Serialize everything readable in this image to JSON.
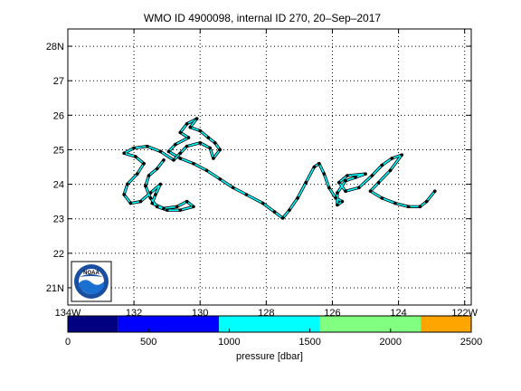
{
  "title": "WMO ID 4900098, internal ID 270, 20–Sep–2017",
  "logo_text": "NOAA",
  "colorbar": {
    "label": "pressure [dbar]",
    "ticks": [
      "0",
      "500",
      "1000",
      "1500",
      "2000",
      "2500"
    ],
    "tick_values": [
      0,
      500,
      1000,
      1500,
      2000,
      2500
    ],
    "range": [
      0,
      2500
    ],
    "bands": [
      {
        "from": 0,
        "to": 312,
        "color": "#000080"
      },
      {
        "from": 312,
        "to": 937,
        "color": "#0000ff"
      },
      {
        "from": 937,
        "to": 1562,
        "color": "#00ffff"
      },
      {
        "from": 1562,
        "to": 2187,
        "color": "#80ff80"
      },
      {
        "from": 2187,
        "to": 2500,
        "color": "#ffa500"
      }
    ]
  },
  "chart_data": {
    "type": "line",
    "title": "WMO ID 4900098, internal ID 270, 20–Sep–2017",
    "xlabel": "",
    "ylabel": "",
    "xlim": [
      -134,
      -121.8
    ],
    "ylim": [
      20.5,
      28.5
    ],
    "grid": true,
    "x_ticks": [
      -134,
      -132,
      -130,
      -128,
      -126,
      -124,
      -122
    ],
    "x_tick_labels": [
      "134W",
      "132",
      "130",
      "128",
      "126",
      "124",
      "122W"
    ],
    "y_ticks": [
      21,
      22,
      23,
      24,
      25,
      26,
      27,
      28
    ],
    "y_tick_labels": [
      "21N",
      "22",
      "23",
      "24",
      "25",
      "26",
      "27",
      "28N"
    ],
    "series": [
      {
        "segment_color": "#00ffff",
        "marker_color": "#000000",
        "points": [
          [
            -130.1,
            25.9
          ],
          [
            -130.4,
            25.75
          ],
          [
            -130.6,
            25.5
          ],
          [
            -130.35,
            25.35
          ],
          [
            -130.75,
            25.15
          ],
          [
            -130.95,
            24.95
          ],
          [
            -130.6,
            24.75
          ],
          [
            -130.2,
            24.6
          ],
          [
            -129.8,
            24.4
          ],
          [
            -129.4,
            24.15
          ],
          [
            -129.0,
            23.9
          ],
          [
            -128.6,
            23.7
          ],
          [
            -128.1,
            23.45
          ],
          [
            -127.75,
            23.2
          ],
          [
            -127.5,
            23.02
          ],
          [
            -127.3,
            23.25
          ],
          [
            -127.05,
            23.6
          ],
          [
            -126.8,
            24.05
          ],
          [
            -126.55,
            24.5
          ],
          [
            -126.4,
            24.6
          ],
          [
            -126.25,
            24.3
          ],
          [
            -126.1,
            23.9
          ],
          [
            -125.9,
            23.6
          ],
          [
            -125.7,
            23.5
          ],
          [
            -125.85,
            23.4
          ],
          [
            -125.85,
            23.75
          ],
          [
            -125.6,
            24.1
          ],
          [
            -125.3,
            24.2
          ],
          [
            -125.0,
            24.3
          ],
          [
            -125.55,
            24.25
          ],
          [
            -125.8,
            24.05
          ],
          [
            -125.6,
            23.8
          ],
          [
            -125.2,
            23.9
          ],
          [
            -124.8,
            24.25
          ],
          [
            -124.5,
            24.55
          ],
          [
            -124.2,
            24.75
          ],
          [
            -123.9,
            24.85
          ],
          [
            -124.25,
            24.4
          ],
          [
            -124.6,
            24.05
          ],
          [
            -124.85,
            23.8
          ],
          [
            -124.5,
            23.6
          ],
          [
            -124.1,
            23.45
          ],
          [
            -123.7,
            23.35
          ],
          [
            -123.35,
            23.35
          ],
          [
            -123.15,
            23.5
          ],
          [
            -122.9,
            23.8
          ]
        ]
      },
      {
        "segment_color": "#00ffff",
        "marker_color": "#000000",
        "points": [
          [
            -130.1,
            25.9
          ],
          [
            -130.3,
            25.65
          ],
          [
            -130.0,
            25.55
          ],
          [
            -129.75,
            25.35
          ],
          [
            -129.55,
            25.2
          ],
          [
            -129.4,
            25.0
          ],
          [
            -129.6,
            24.75
          ],
          [
            -129.7,
            25.05
          ],
          [
            -130.0,
            25.2
          ],
          [
            -130.4,
            25.1
          ],
          [
            -130.6,
            24.9
          ],
          [
            -130.8,
            24.7
          ],
          [
            -131.2,
            24.95
          ],
          [
            -131.6,
            25.1
          ],
          [
            -132.0,
            25.05
          ],
          [
            -132.3,
            24.9
          ],
          [
            -131.95,
            24.8
          ],
          [
            -131.7,
            24.6
          ],
          [
            -131.9,
            24.3
          ],
          [
            -132.2,
            24.0
          ],
          [
            -132.3,
            23.7
          ],
          [
            -132.1,
            23.45
          ],
          [
            -131.8,
            23.5
          ],
          [
            -131.5,
            23.75
          ],
          [
            -131.2,
            24.0
          ],
          [
            -131.35,
            23.7
          ],
          [
            -131.45,
            23.45
          ],
          [
            -131.1,
            23.3
          ],
          [
            -130.7,
            23.35
          ],
          [
            -130.4,
            23.5
          ],
          [
            -130.2,
            23.35
          ],
          [
            -130.6,
            23.25
          ],
          [
            -131.0,
            23.25
          ],
          [
            -131.3,
            23.35
          ],
          [
            -131.5,
            23.6
          ],
          [
            -131.65,
            23.95
          ],
          [
            -131.55,
            24.25
          ],
          [
            -131.3,
            24.45
          ],
          [
            -131.1,
            24.7
          ]
        ]
      }
    ]
  }
}
